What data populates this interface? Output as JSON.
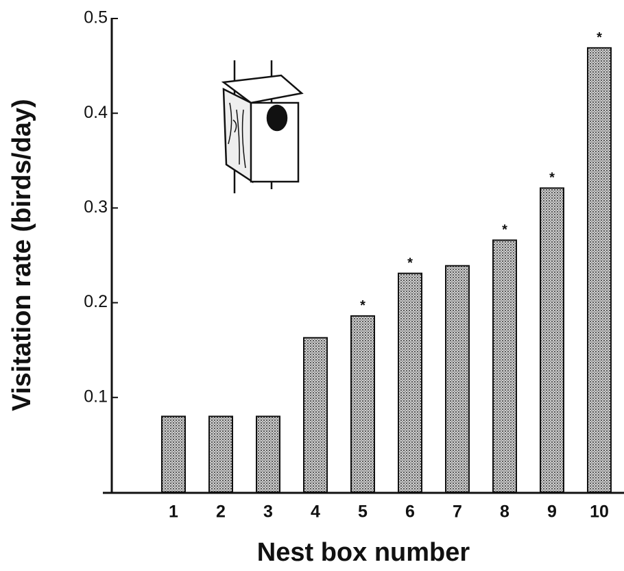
{
  "chart_data": {
    "type": "bar",
    "x_label": "Nest box number",
    "y_label": "Visitation rate (birds/day)",
    "categories": [
      "1",
      "2",
      "3",
      "4",
      "5",
      "6",
      "7",
      "8",
      "9",
      "10"
    ],
    "values": [
      0.08,
      0.08,
      0.08,
      0.163,
      0.186,
      0.231,
      0.239,
      0.266,
      0.321,
      0.469
    ],
    "significance": [
      null,
      null,
      null,
      null,
      "*",
      "*",
      null,
      "*",
      "*",
      "*"
    ],
    "color": "#a8a8a8",
    "ylim": [
      0,
      0.5
    ],
    "yticks": [
      0.1,
      0.2,
      0.3,
      0.4,
      0.5
    ],
    "grid": false
  }
}
